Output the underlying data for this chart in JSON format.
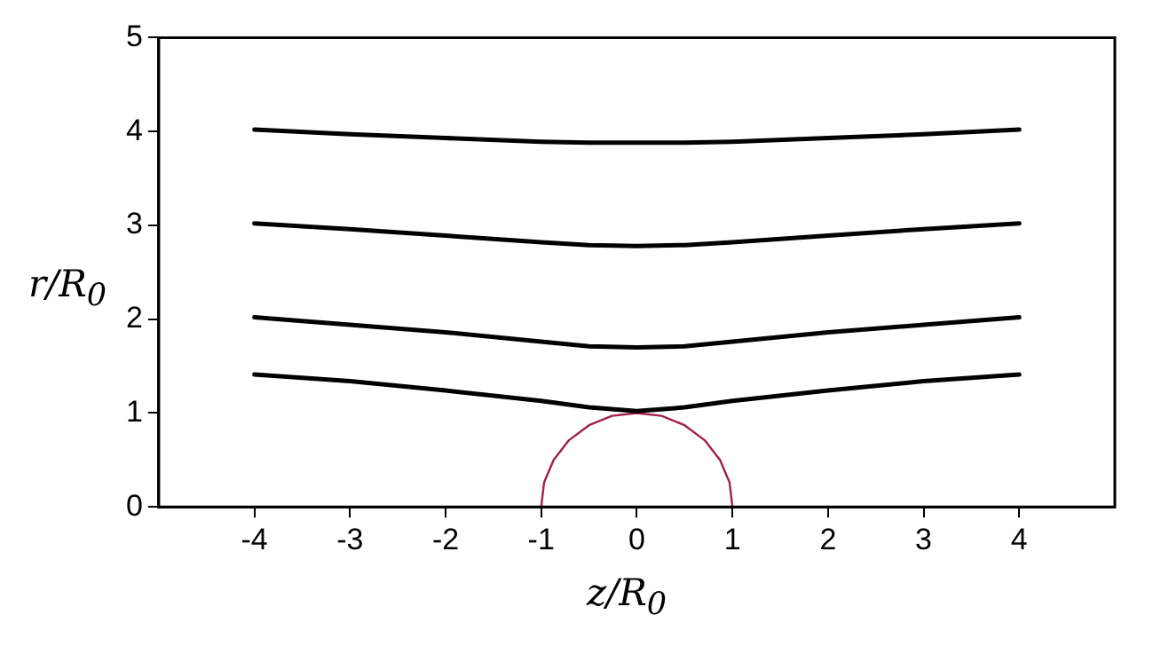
{
  "chart_data": {
    "type": "line",
    "xlabel": "z/R$_{0}$",
    "ylabel": "r/R$_{0}$",
    "xlim": [
      -5,
      5
    ],
    "xticks": [
      -4,
      -3,
      -2,
      -1,
      0,
      1,
      2,
      3,
      4
    ],
    "ylim": [
      0,
      5
    ],
    "yticks": [
      0,
      1,
      2,
      3,
      4,
      5
    ],
    "grid": false,
    "legend": false,
    "marker": "none",
    "line_style": "solid",
    "series": [
      {
        "color": "#000000",
        "x": [
          -4,
          -3,
          -2,
          -1,
          -0.5,
          0,
          0.5,
          1,
          2,
          3,
          4
        ],
        "values": [
          4.02,
          3.97,
          3.93,
          3.89,
          3.88,
          3.88,
          3.88,
          3.89,
          3.93,
          3.97,
          4.02
        ]
      },
      {
        "color": "#000000",
        "x": [
          -4,
          -3,
          -2,
          -1,
          -0.5,
          0,
          0.5,
          1,
          2,
          3,
          4
        ],
        "values": [
          3.02,
          2.96,
          2.89,
          2.82,
          2.79,
          2.78,
          2.79,
          2.82,
          2.89,
          2.96,
          3.02
        ]
      },
      {
        "color": "#000000",
        "x": [
          -4,
          -3,
          -2,
          -1,
          -0.5,
          0,
          0.5,
          1,
          2,
          3,
          4
        ],
        "values": [
          2.02,
          1.94,
          1.86,
          1.76,
          1.71,
          1.7,
          1.71,
          1.76,
          1.86,
          1.94,
          2.02
        ]
      },
      {
        "color": "#000000",
        "x": [
          -4,
          -3,
          -2,
          -1,
          -0.5,
          0,
          0.5,
          1,
          2,
          3,
          4
        ],
        "values": [
          1.41,
          1.34,
          1.24,
          1.13,
          1.06,
          1.02,
          1.06,
          1.13,
          1.24,
          1.34,
          1.41
        ]
      },
      {
        "color": "#a0204a",
        "x": [
          -1,
          -0.97,
          -0.87,
          -0.71,
          -0.5,
          -0.26,
          0,
          0.26,
          0.5,
          0.71,
          0.87,
          0.97,
          1
        ],
        "values": [
          0,
          0.26,
          0.5,
          0.71,
          0.87,
          0.97,
          1,
          0.97,
          0.87,
          0.71,
          0.5,
          0.26,
          0
        ]
      }
    ]
  }
}
